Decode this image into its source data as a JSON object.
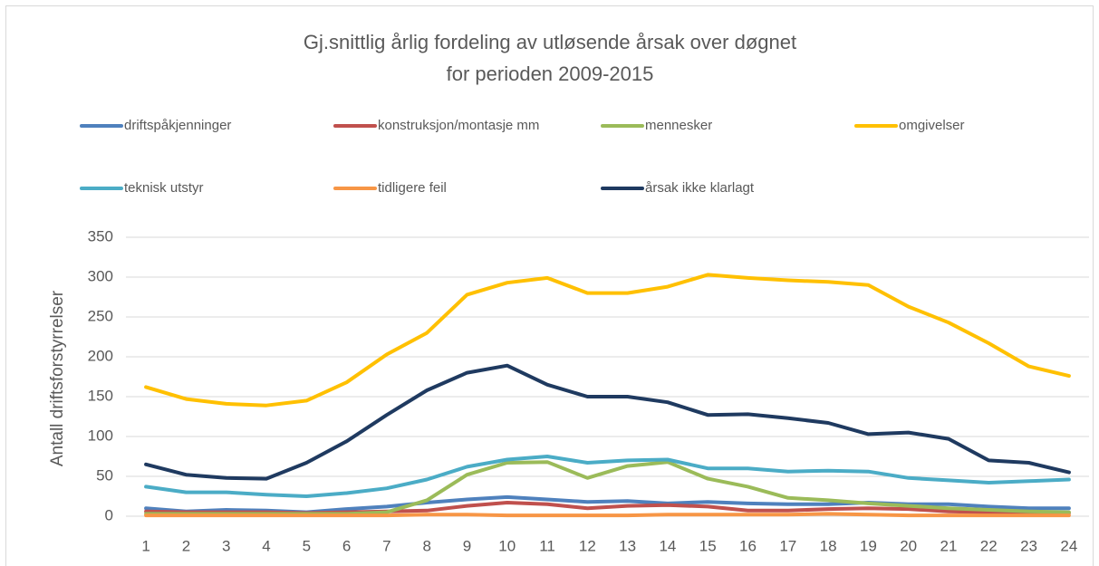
{
  "chart_data": {
    "type": "line",
    "title": "Gj.snittlig årlig fordeling av utløsende årsak over døgnet",
    "subtitle": "for perioden 2009-2015",
    "y_label": "Antall driftsforstyrrelser",
    "categories": [
      "1",
      "2",
      "3",
      "4",
      "5",
      "6",
      "7",
      "8",
      "9",
      "10",
      "11",
      "12",
      "13",
      "14",
      "15",
      "16",
      "17",
      "18",
      "19",
      "20",
      "21",
      "22",
      "23",
      "24"
    ],
    "ylim": [
      0,
      350
    ],
    "yticks": [
      0,
      50,
      100,
      150,
      200,
      250,
      300,
      350
    ],
    "grid": true,
    "legend": "top",
    "series": [
      {
        "name": "driftspåkjenninger",
        "color": "#4f81bd",
        "values": [
          10,
          6,
          8,
          7,
          5,
          9,
          12,
          17,
          21,
          24,
          21,
          18,
          19,
          16,
          18,
          16,
          15,
          15,
          17,
          15,
          15,
          12,
          10,
          10
        ]
      },
      {
        "name": "konstruksjon/montasje mm",
        "color": "#c0504d",
        "values": [
          6,
          5,
          5,
          5,
          4,
          5,
          6,
          7,
          13,
          17,
          15,
          10,
          13,
          14,
          12,
          7,
          7,
          9,
          10,
          9,
          6,
          5,
          5,
          4
        ]
      },
      {
        "name": "mennesker",
        "color": "#9bbb59",
        "values": [
          3,
          3,
          3,
          3,
          3,
          3,
          5,
          20,
          52,
          67,
          68,
          48,
          63,
          68,
          47,
          37,
          23,
          20,
          16,
          13,
          10,
          8,
          6,
          5
        ]
      },
      {
        "name": "omgivelser",
        "color": "#ffc000",
        "values": [
          162,
          147,
          141,
          139,
          145,
          168,
          203,
          230,
          278,
          293,
          299,
          280,
          280,
          288,
          303,
          299,
          296,
          294,
          290,
          263,
          243,
          217,
          188,
          176
        ]
      },
      {
        "name": "teknisk utstyr",
        "color": "#4bacc6",
        "values": [
          37,
          30,
          30,
          27,
          25,
          29,
          35,
          46,
          62,
          71,
          75,
          67,
          70,
          71,
          60,
          60,
          56,
          57,
          56,
          48,
          45,
          42,
          44,
          46
        ]
      },
      {
        "name": "tidligere feil",
        "color": "#f79646",
        "values": [
          1,
          1,
          1,
          1,
          1,
          1,
          1,
          2,
          2,
          1,
          1,
          1,
          1,
          2,
          2,
          2,
          2,
          3,
          2,
          1,
          1,
          1,
          1,
          1
        ]
      },
      {
        "name": "årsak ikke klarlagt",
        "color": "#1f3a60",
        "values": [
          65,
          52,
          48,
          47,
          67,
          94,
          127,
          158,
          180,
          189,
          165,
          150,
          150,
          143,
          127,
          128,
          123,
          117,
          103,
          105,
          97,
          70,
          67,
          55
        ]
      }
    ]
  }
}
